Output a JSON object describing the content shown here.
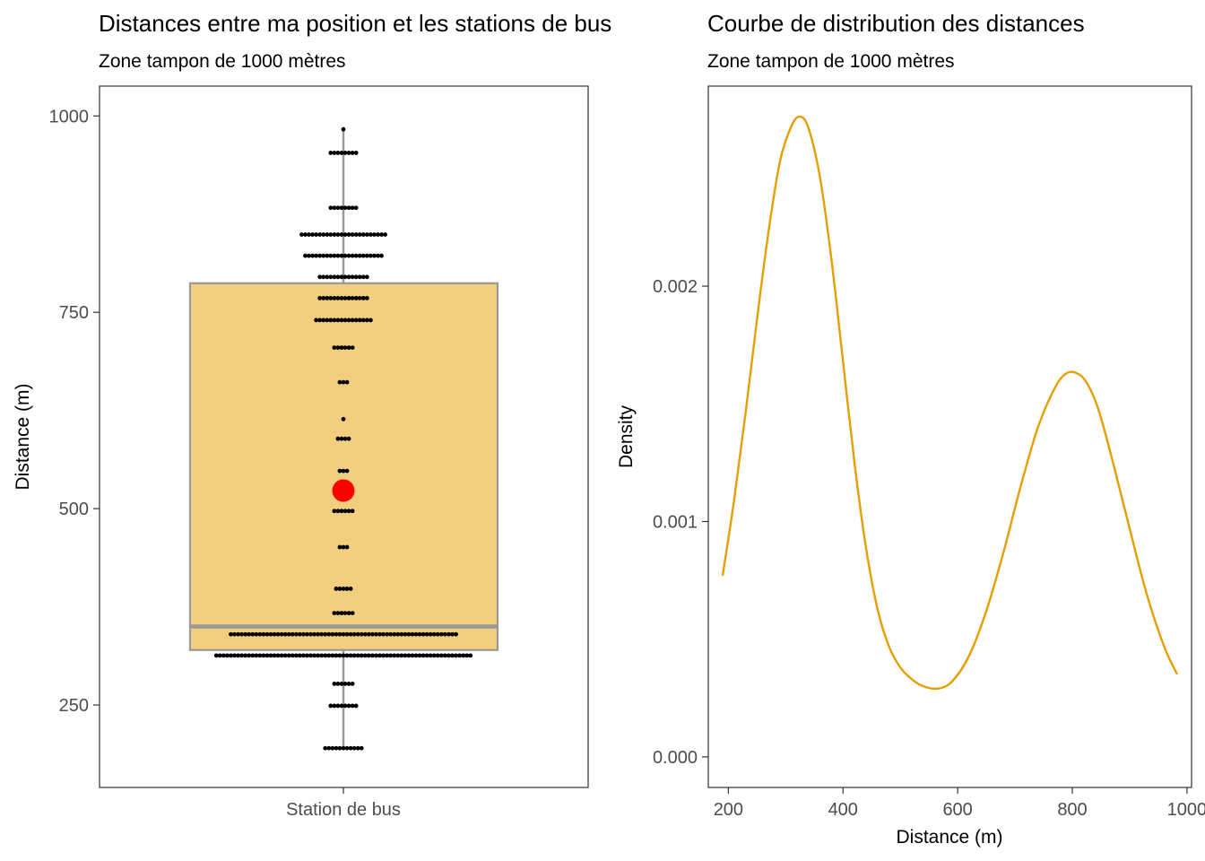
{
  "colors": {
    "box_fill": "#F2CF7E",
    "box_stroke": "#999999",
    "points": "#000000",
    "mean_point": "#FF0000",
    "density_line": "#E69F00",
    "panel_border": "#333333"
  },
  "chart_data": [
    {
      "type": "boxplot",
      "title": "Distances entre ma position et les stations de bus",
      "subtitle": "Zone tampon de 1000 mètres",
      "xlabel": "",
      "ylabel": "Distance (m)",
      "categories": [
        "Station de bus"
      ],
      "ylim": [
        145,
        1038
      ],
      "yticks": [
        "250",
        "500",
        "750",
        "1000"
      ],
      "box": {
        "min": 195,
        "q1": 320,
        "median": 350,
        "q3": 787,
        "max": 983,
        "mean": 523
      },
      "dot_strip": [
        {
          "value": 195,
          "count": 11
        },
        {
          "value": 249,
          "count": 8
        },
        {
          "value": 277,
          "count": 6
        },
        {
          "value": 313,
          "count": 71
        },
        {
          "value": 340,
          "count": 63
        },
        {
          "value": 367,
          "count": 6
        },
        {
          "value": 398,
          "count": 5
        },
        {
          "value": 451,
          "count": 3
        },
        {
          "value": 497,
          "count": 6
        },
        {
          "value": 548,
          "count": 3
        },
        {
          "value": 589,
          "count": 4
        },
        {
          "value": 614,
          "count": 1
        },
        {
          "value": 661,
          "count": 3
        },
        {
          "value": 705,
          "count": 6
        },
        {
          "value": 740,
          "count": 16
        },
        {
          "value": 768,
          "count": 14
        },
        {
          "value": 795,
          "count": 14
        },
        {
          "value": 822,
          "count": 22
        },
        {
          "value": 849,
          "count": 24
        },
        {
          "value": 883,
          "count": 8
        },
        {
          "value": 953,
          "count": 8
        },
        {
          "value": 983,
          "count": 1
        }
      ],
      "grid": false
    },
    {
      "type": "line",
      "title": "Courbe de distribution des distances",
      "subtitle": "Zone tampon de 1000 mètres",
      "xlabel": "Distance (m)",
      "ylabel": "Density",
      "xlim": [
        165,
        1008
      ],
      "ylim": [
        -0.00013,
        0.00285
      ],
      "xticks": [
        "200",
        "400",
        "600",
        "800",
        "1000"
      ],
      "yticks": [
        "0.000",
        "0.001",
        "0.002"
      ],
      "x": [
        190,
        210,
        230,
        250,
        270,
        290,
        310,
        325,
        340,
        360,
        380,
        400,
        420,
        440,
        460,
        480,
        500,
        520,
        540,
        565,
        590,
        620,
        650,
        680,
        710,
        740,
        770,
        790,
        808,
        825,
        845,
        870,
        900,
        930,
        960,
        983
      ],
      "y": [
        0.00077,
        0.00109,
        0.00146,
        0.00186,
        0.00223,
        0.00253,
        0.00268,
        0.00272,
        0.00267,
        0.00246,
        0.00211,
        0.00168,
        0.00125,
        0.00089,
        0.00063,
        0.00047,
        0.00038,
        0.00033,
        0.0003,
        0.00029,
        0.00032,
        0.00043,
        0.00062,
        0.00087,
        0.00115,
        0.0014,
        0.00157,
        0.00163,
        0.00163,
        0.00159,
        0.00148,
        0.00126,
        0.00097,
        0.00069,
        0.00047,
        0.00035
      ],
      "grid": false
    }
  ]
}
